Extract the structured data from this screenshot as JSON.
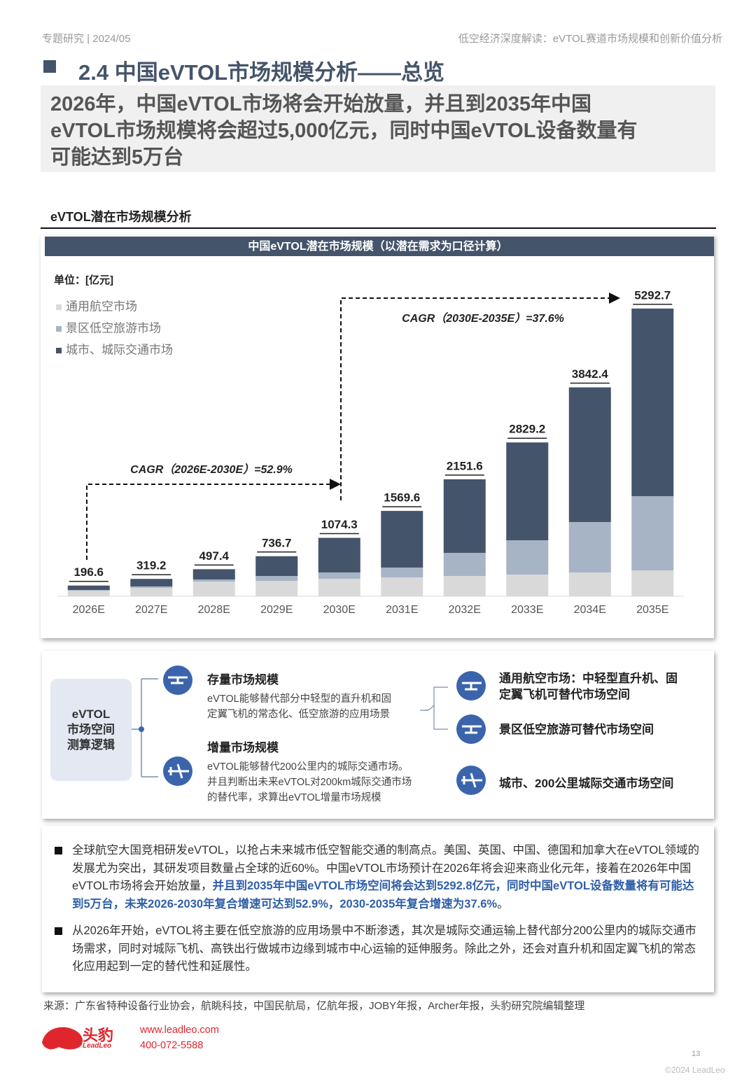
{
  "header": {
    "left": "专题研究 | 2024/05",
    "right": "低空经济深度解读：eVTOL赛道市场规模和创新价值分析"
  },
  "section_title": "2.4 中国eVTOL市场规模分析——总览",
  "summary": [
    "2026年，中国eVTOL市场将会开始放量，并且到2035年中国",
    "eVTOL市场规模将会超过5,000亿元，同时中国eVTOL设备数量有",
    "可能达到5万台"
  ],
  "chart_heading": "eVTOL潜在市场规模分析",
  "chart_data": {
    "type": "bar",
    "stacked": true,
    "title": "中国eVTOL潜在市场规模（以潜在需求为口径计算）",
    "unit": "单位：[亿元]",
    "categories": [
      "2026E",
      "2027E",
      "2028E",
      "2029E",
      "2030E",
      "2031E",
      "2032E",
      "2033E",
      "2034E",
      "2035E"
    ],
    "series": [
      {
        "name": "通用航空市场",
        "color": "#d9d9d9",
        "values": [
          103,
          155,
          270,
          283,
          322,
          348,
          373,
          399,
          438,
          476
        ]
      },
      {
        "name": "景区低空旅游市场",
        "color": "#a7b4c6",
        "values": [
          13,
          26,
          39,
          90,
          116,
          180,
          425,
          631,
          927,
          1365
        ]
      },
      {
        "name": "城市、城际交通市场",
        "color": "#44546a",
        "values": [
          80.6,
          138.2,
          188.4,
          363.7,
          636.3,
          1041.6,
          1353.6,
          1799.2,
          2477.4,
          3451.7
        ]
      }
    ],
    "totals": [
      196.6,
      319.2,
      497.4,
      736.7,
      1074.3,
      1569.6,
      2151.6,
      2829.2,
      3842.4,
      5292.7
    ],
    "ylim": [
      0,
      5600
    ],
    "annotations": [
      "CAGR（2026E-2030E）=52.9%",
      "CAGR（2030E-2035E）=37.6%"
    ]
  },
  "logic": {
    "center": [
      "eVTOL",
      "市场空间",
      "测算逻辑"
    ],
    "left_items": [
      {
        "title": "存量市场规模",
        "text": [
          "eVTOL能够替代部分中轻型的直升机和固",
          "定翼飞机的常态化、低空旅游的应用场景"
        ]
      },
      {
        "title": "增量市场规模",
        "text": [
          "eVTOL能够替代200公里内的城际交通市场。",
          "并且判断出未来eVTOL对200km城际交通市场",
          "的替代率，求算出eVTOL增量市场规模"
        ]
      }
    ],
    "right_items": [
      [
        "通用航空市场：中轻型直升机、固",
        "定翼飞机可替代市场空间"
      ],
      [
        "景区低空旅游可替代市场空间"
      ],
      [
        "城市、200公里城际交通市场空间"
      ]
    ]
  },
  "bullets": [
    [
      {
        "text": "全球航空大国竞相研发eVTOL，以抢占未来城市低空智能交通的制高点。美国、英国、中国、德国和加拿大在eVTOL领域的发展尤为突出，其研发项目数量占全球的近60%。中国eVTOL市场预计在2026年将会迎来商业化元年，接着在2026年中国eVTOL市场将会开始放量，",
        "highlight": false
      },
      {
        "text": "并且到2035年中国eVTOL市场空间将会达到5292.8亿元，同时中国eVTOL设备数量将有可能达到5万台，未来2026-2030年复合增速可达到52.9%，2030-2035年复合增速为37.6%",
        "highlight": true
      },
      {
        "text": "。",
        "highlight": false
      }
    ],
    [
      {
        "text": "从2026年开始，eVTOL将主要在低空旅游的应用场景中不断渗透，其次是城际交通运输上替代部分200公里内的城际交通市场需求，同时对城际飞机、高铁出行做城市边缘到城市中心运输的延伸服务。除此之外，还会对直升机和固定翼飞机的常态化应用起到一定的替代性和延展性。",
        "highlight": false
      }
    ]
  ],
  "source": "来源：广东省特种设备行业协会，航眺科技，中国民航局，亿航年报，JOBY年报，Archer年报，头豹研究院编辑整理",
  "footer": {
    "logo_cn": "头豹",
    "logo_en": "LeadLeo",
    "website": "www.leadleo.com",
    "phone": "400-072-5588",
    "page": "13",
    "copyright": "©2024 LeadLeo"
  }
}
